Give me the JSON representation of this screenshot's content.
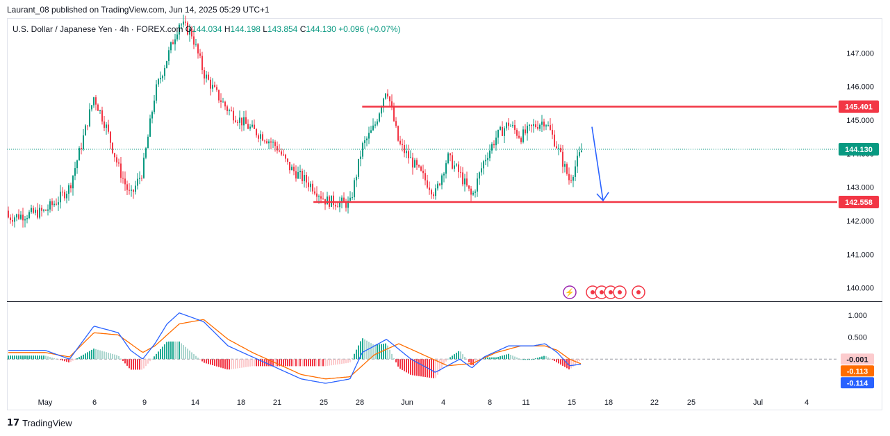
{
  "header": {
    "published": "Laurant_08 published on TradingView.com, Jun 14, 2025 05:29 UTC+1"
  },
  "legend": {
    "symbol": "U.S. Dollar / Japanese Yen · 4h · FOREX.com",
    "open_label": "O",
    "open": "144.034",
    "high_label": "H",
    "high": "144.198",
    "low_label": "L",
    "low": "143.854",
    "close_label": "C",
    "close": "144.130",
    "change": "+0.096 (+0.07%)"
  },
  "footer": {
    "brand": "TradingView"
  },
  "colors": {
    "up": "#089981",
    "down": "#f23645",
    "line": "#f23645",
    "arrow": "#2962ff",
    "macd": "#2962ff",
    "signal": "#ff6d00"
  },
  "chart_data": [
    {
      "type": "candlestick",
      "title": "U.S. Dollar / Japanese Yen · 4h · FOREX.com",
      "timeframe": "4h",
      "y_ticks": [
        "147.000",
        "146.000",
        "145.000",
        "144.000",
        "143.000",
        "142.000",
        "141.000",
        "140.000"
      ],
      "ylim": [
        139.6,
        148.0
      ],
      "x_ticks": [
        "May",
        "6",
        "9",
        "14",
        "18",
        "21",
        "25",
        "28",
        "Jun",
        "4",
        "8",
        "11",
        "15",
        "18",
        "22",
        "25",
        "Jul",
        "4"
      ],
      "price_labels": {
        "resistance": "145.401",
        "support": "142.558",
        "last": "144.130"
      },
      "horizontal_lines": [
        {
          "name": "resistance",
          "value": 145.401,
          "from_x": "May 27",
          "to_x": "Jun 20"
        },
        {
          "name": "support",
          "value": 142.558,
          "from_x": "May 23",
          "to_x": "Jun 20"
        }
      ],
      "projection_arrow": {
        "from": 144.8,
        "to": 142.6,
        "direction": "down"
      },
      "close_path": [
        [
          "May 1",
          142.3
        ],
        [
          "May 2",
          142.6
        ],
        [
          "May 3",
          143.0
        ],
        [
          "May 4",
          144.3
        ],
        [
          "May 5",
          145.7
        ],
        [
          "May 6",
          144.8
        ],
        [
          "May 7",
          143.6
        ],
        [
          "May 8",
          142.7
        ],
        [
          "May 9",
          143.5
        ],
        [
          "May 10",
          145.8
        ],
        [
          "May 12",
          147.9
        ],
        [
          "May 13",
          147.6
        ],
        [
          "May 14",
          146.4
        ],
        [
          "May 15",
          145.8
        ],
        [
          "May 16",
          145.3
        ],
        [
          "May 18",
          144.7
        ],
        [
          "May 19",
          144.5
        ],
        [
          "May 20",
          144.2
        ],
        [
          "May 21",
          143.6
        ],
        [
          "May 22",
          143.3
        ],
        [
          "May 23",
          143.0
        ],
        [
          "May 24",
          142.6
        ],
        [
          "May 26",
          142.5
        ],
        [
          "May 27",
          144.2
        ],
        [
          "May 28",
          144.8
        ],
        [
          "May 29",
          146.0
        ],
        [
          "May 30",
          144.3
        ],
        [
          "May 31",
          143.8
        ],
        [
          "Jun 2",
          142.8
        ],
        [
          "Jun 3",
          143.9
        ],
        [
          "Jun 4",
          143.4
        ],
        [
          "Jun 5",
          142.7
        ],
        [
          "Jun 6",
          143.8
        ],
        [
          "Jun 7",
          144.5
        ],
        [
          "Jun 8",
          144.9
        ],
        [
          "Jun 9",
          144.5
        ],
        [
          "Jun 10",
          144.8
        ],
        [
          "Jun 11",
          145.0
        ],
        [
          "Jun 12",
          144.2
        ],
        [
          "Jun 13",
          143.2
        ],
        [
          "Jun 14",
          144.1
        ]
      ]
    },
    {
      "type": "line",
      "indicator": "MACD",
      "y_ticks": [
        "1.000",
        "0.500"
      ],
      "value_labels": [
        "-0.001",
        "-0.113",
        "-0.114"
      ],
      "series_values": {
        "histogram": -0.001,
        "signal": -0.113,
        "macd": -0.114
      },
      "macd_path": [
        [
          "May 1",
          0.2
        ],
        [
          "May 3",
          0.0
        ],
        [
          "May 5",
          0.75
        ],
        [
          "May 7",
          0.6
        ],
        [
          "May 8",
          0.2
        ],
        [
          "May 9",
          0.0
        ],
        [
          "May 10",
          0.35
        ],
        [
          "May 11",
          0.8
        ],
        [
          "May 12",
          1.05
        ],
        [
          "May 14",
          0.85
        ],
        [
          "May 16",
          0.3
        ],
        [
          "May 18",
          0.05
        ],
        [
          "May 20",
          -0.2
        ],
        [
          "May 22",
          -0.45
        ],
        [
          "May 24",
          -0.55
        ],
        [
          "May 26",
          -0.45
        ],
        [
          "May 27",
          0.15
        ],
        [
          "May 29",
          0.45
        ],
        [
          "May 31",
          0.0
        ],
        [
          "Jun 2",
          -0.3
        ],
        [
          "Jun 4",
          0.0
        ],
        [
          "Jun 5",
          -0.2
        ],
        [
          "Jun 6",
          0.05
        ],
        [
          "Jun 8",
          0.3
        ],
        [
          "Jun 10",
          0.3
        ],
        [
          "Jun 11",
          0.35
        ],
        [
          "Jun 12",
          0.15
        ],
        [
          "Jun 13",
          -0.15
        ],
        [
          "Jun 14",
          -0.114
        ]
      ],
      "signal_path": [
        [
          "May 1",
          0.15
        ],
        [
          "May 3",
          0.05
        ],
        [
          "May 5",
          0.6
        ],
        [
          "May 7",
          0.55
        ],
        [
          "May 9",
          0.15
        ],
        [
          "May 10",
          0.3
        ],
        [
          "May 12",
          0.8
        ],
        [
          "May 14",
          0.9
        ],
        [
          "May 16",
          0.45
        ],
        [
          "May 18",
          0.15
        ],
        [
          "May 20",
          -0.1
        ],
        [
          "May 22",
          -0.35
        ],
        [
          "May 24",
          -0.45
        ],
        [
          "May 26",
          -0.4
        ],
        [
          "May 28",
          0.1
        ],
        [
          "May 30",
          0.35
        ],
        [
          "Jun 1",
          0.1
        ],
        [
          "Jun 3",
          -0.15
        ],
        [
          "Jun 5",
          -0.1
        ],
        [
          "Jun 7",
          0.15
        ],
        [
          "Jun 9",
          0.3
        ],
        [
          "Jun 11",
          0.3
        ],
        [
          "Jun 12",
          0.2
        ],
        [
          "Jun 13",
          0.0
        ],
        [
          "Jun 14",
          -0.113
        ]
      ]
    }
  ]
}
